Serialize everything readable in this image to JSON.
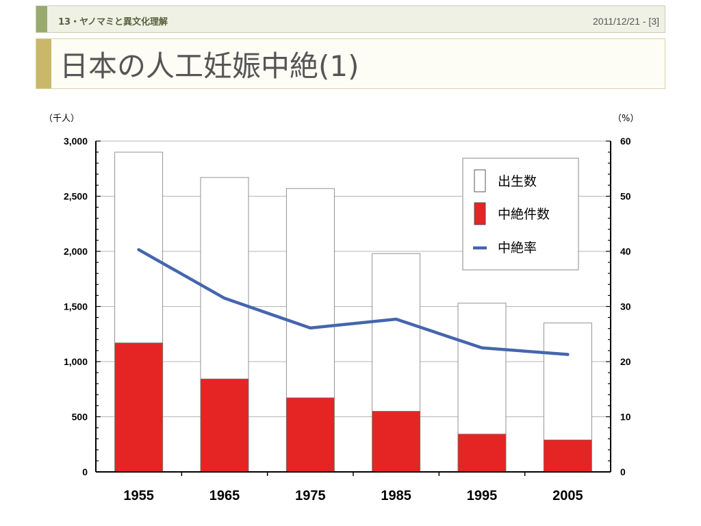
{
  "header": {
    "course": "13・ヤノマミと異文化理解",
    "date": "2011/12/21 - [3]"
  },
  "slide": {
    "title": "日本の人工妊娠中絶(1)"
  },
  "colors": {
    "births": "#ffffff",
    "abortions": "#e52424",
    "rate": "#4565ae"
  },
  "chart_data": {
    "type": "bar",
    "categories": [
      "1955",
      "1965",
      "1975",
      "1985",
      "1995",
      "2005"
    ],
    "series": [
      {
        "name": "出生数",
        "kind": "bar",
        "axis": "left",
        "values": [
          2900,
          2670,
          2570,
          1980,
          1530,
          1350
        ]
      },
      {
        "name": "中絶件数",
        "kind": "bar",
        "axis": "left",
        "values": [
          1170,
          843,
          672,
          550,
          343,
          290
        ]
      },
      {
        "name": "中絶率",
        "kind": "line",
        "axis": "right",
        "values": [
          40.3,
          31.5,
          26.1,
          27.7,
          22.5,
          21.3
        ]
      }
    ],
    "y_left": {
      "unit": "（千人）",
      "ylim": [
        0,
        3000
      ],
      "ticks": [
        "0",
        "500",
        "1,000",
        "1,500",
        "2,000",
        "2,500",
        "3,000"
      ]
    },
    "y_right": {
      "unit": "（%）",
      "ylim": [
        0,
        60
      ],
      "ticks": [
        "0",
        "10",
        "20",
        "30",
        "40",
        "50",
        "60"
      ]
    },
    "legend_position": "top-right",
    "grid": true
  }
}
